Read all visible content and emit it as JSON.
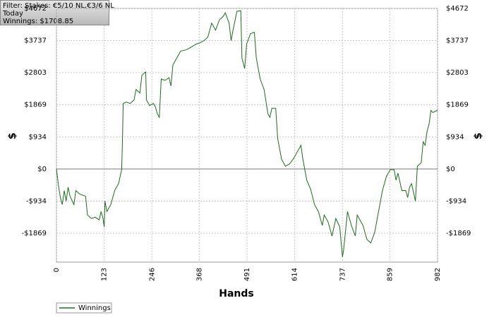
{
  "chart_data": {
    "type": "line",
    "annotations": [
      "Filter: Stakes: €5/10 NL,€3/6 NL",
      "Today",
      "Winnings: $1708.85"
    ],
    "xlabel": "Hands",
    "ylabel": "$",
    "y2label": "$",
    "xlim": [
      0,
      982
    ],
    "xticks": [
      0,
      123,
      246,
      368,
      491,
      614,
      737,
      859,
      982
    ],
    "ylim": [
      -2710,
      4672
    ],
    "yticks": [
      {
        "value": -1869,
        "label": "-$1869"
      },
      {
        "value": -934,
        "label": "-$934"
      },
      {
        "value": 0,
        "label": "$0"
      },
      {
        "value": 934,
        "label": "$934"
      },
      {
        "value": 1869,
        "label": "$1869"
      },
      {
        "value": 2803,
        "label": "$2803"
      },
      {
        "value": 3737,
        "label": "$3737"
      },
      {
        "value": 4672,
        "label": "$4672"
      }
    ],
    "grid": true,
    "legend": "bottom-left",
    "x": [
      0,
      5,
      10,
      15,
      20,
      25,
      30,
      35,
      45,
      50,
      60,
      75,
      80,
      90,
      100,
      110,
      115,
      120,
      123,
      125,
      130,
      140,
      150,
      160,
      168,
      170,
      172,
      180,
      190,
      200,
      205,
      215,
      220,
      225,
      230,
      232,
      240,
      250,
      255,
      260,
      265,
      270,
      280,
      290,
      295,
      300,
      310,
      320,
      335,
      345,
      360,
      370,
      380,
      390,
      400,
      410,
      420,
      430,
      435,
      445,
      450,
      455,
      465,
      475,
      478,
      485,
      490,
      500,
      510,
      515,
      525,
      535,
      545,
      550,
      555,
      565,
      570,
      580,
      590,
      600,
      610,
      620,
      630,
      635,
      645,
      655,
      665,
      675,
      685,
      690,
      700,
      710,
      720,
      730,
      737,
      740,
      750,
      760,
      770,
      775,
      790,
      800,
      810,
      820,
      830,
      840,
      850,
      860,
      870,
      875,
      880,
      890,
      900,
      905,
      910,
      915,
      925,
      930,
      940,
      945,
      950,
      955,
      960,
      965,
      970,
      982
    ],
    "series": [
      {
        "name": "Winnings",
        "color": "#1d6b1d",
        "values": [
          0,
          -467,
          -832,
          -1035,
          -629,
          -934,
          -528,
          -792,
          -1035,
          -629,
          -731,
          -792,
          -1340,
          -1441,
          -1401,
          -1482,
          -1238,
          -1441,
          -1685,
          -934,
          -1238,
          -1035,
          -629,
          -426,
          -20,
          792,
          1908,
          1949,
          1908,
          2010,
          2314,
          2213,
          2720,
          2781,
          2822,
          2010,
          1847,
          1908,
          1807,
          1604,
          1502,
          2619,
          2578,
          2659,
          2416,
          3025,
          3228,
          3431,
          3471,
          3532,
          3634,
          3674,
          3735,
          3837,
          4243,
          4040,
          4344,
          4446,
          4547,
          4243,
          3735,
          4040,
          4588,
          4608,
          3228,
          2923,
          3634,
          3938,
          3979,
          3228,
          2619,
          2314,
          1604,
          1502,
          1766,
          1766,
          893,
          284,
          81,
          142,
          284,
          487,
          690,
          284,
          -325,
          -589,
          -1035,
          -1238,
          -1644,
          -1340,
          -1543,
          -1949,
          -1441,
          -1685,
          -2558,
          -2355,
          -1238,
          -1644,
          -1949,
          -1340,
          -1644,
          -2050,
          -2152,
          -1847,
          -1238,
          -629,
          -223,
          -20,
          -20,
          -325,
          -122,
          -629,
          -629,
          -832,
          -528,
          -426,
          -934,
          81,
          183,
          792,
          690,
          1096,
          1299,
          1705,
          1644,
          1709
        ]
      }
    ]
  }
}
